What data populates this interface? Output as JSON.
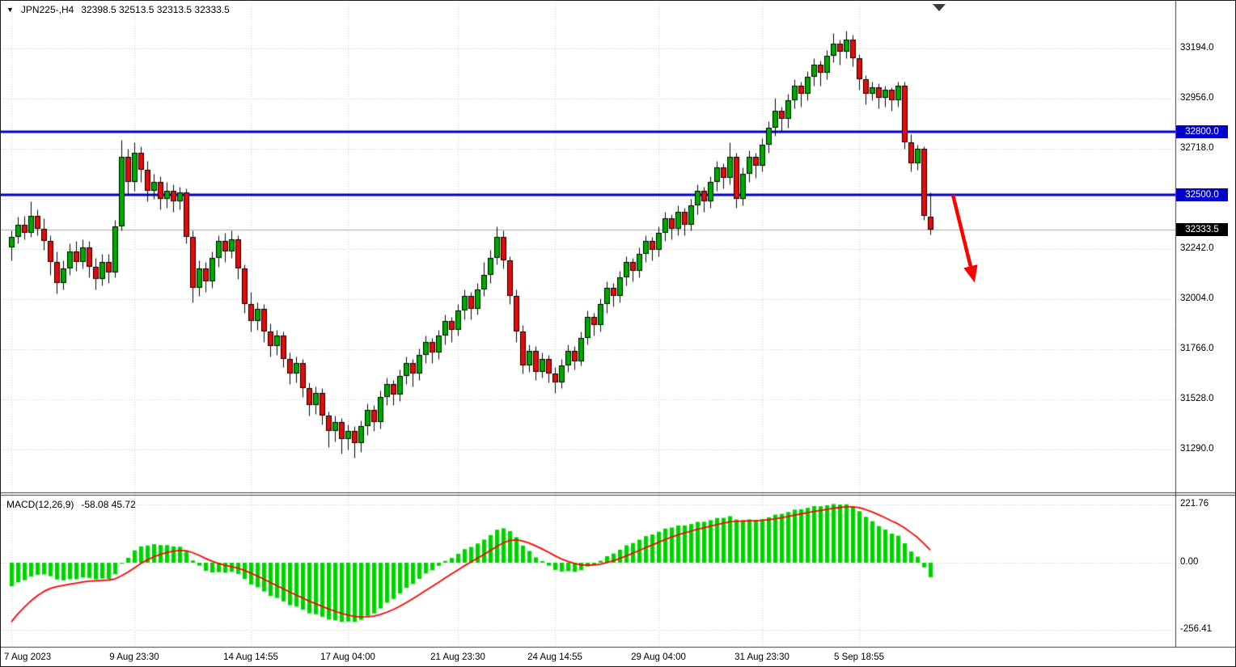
{
  "header": {
    "expand_icon": "▼",
    "symbol_period": "JPN225-,H4",
    "ohlc": "32398.5 32513.5 32313.5 32333.5"
  },
  "macd_panel_label": {
    "name": "MACD(12,26,9)",
    "values": "-58.08 45.72"
  },
  "colors": {
    "background": "#FFFFFF",
    "grid": "#C9C9C9",
    "candle_up": "#00A800",
    "candle_down": "#DE0E0E",
    "candle_border": "#000000",
    "wick": "#000000",
    "hline": "#0000C8",
    "current_price_line": "#A6A6A6",
    "tag_current_bg": "#000000",
    "macd_hist": "#00D200",
    "macd_signal": "#FF0000",
    "arrow": "#FF0000",
    "border": "#3C3C3C",
    "text": "#000000"
  },
  "chart_data": {
    "type": "candlestick",
    "title": "JPN225-,H4",
    "symbol": "JPN225-",
    "timeframe": "H4",
    "ohlc_display": {
      "open": 32398.5,
      "high": 32513.5,
      "low": 32313.5,
      "close": 32333.5
    },
    "main_axis": {
      "ylim": [
        31090,
        33365
      ],
      "grid_prices": [
        31290,
        31528,
        31766,
        32004,
        32242,
        32480,
        32718,
        32956,
        33194
      ],
      "ticks": [
        {
          "label": "33194.0",
          "price": 33194.0
        },
        {
          "label": "32956.0",
          "price": 32956.0
        },
        {
          "label": "32718.0",
          "price": 32718.0
        },
        {
          "label": "32242.0",
          "price": 32242.0
        },
        {
          "label": "32004.0",
          "price": 32004.0
        },
        {
          "label": "31766.0",
          "price": 31766.0
        },
        {
          "label": "31528.0",
          "price": 31528.0
        },
        {
          "label": "31290.0",
          "price": 31290.0
        }
      ]
    },
    "hlines": [
      {
        "type": "resistance",
        "price": 32800.0,
        "label": "32800.0"
      },
      {
        "type": "support",
        "price": 32500.0,
        "label": "32500.0"
      }
    ],
    "current_price": {
      "price": 32333.5,
      "label": "32333.5"
    },
    "x_ticks": [
      {
        "label": "7 Aug 2023",
        "bar": 0
      },
      {
        "label": "9 Aug 23:30",
        "bar": 19
      },
      {
        "label": "14 Aug 14:55",
        "bar": 37
      },
      {
        "label": "17 Aug 04:00",
        "bar": 52
      },
      {
        "label": "21 Aug 23:30",
        "bar": 69
      },
      {
        "label": "24 Aug 14:55",
        "bar": 84
      },
      {
        "label": "29 Aug 04:00",
        "bar": 100
      },
      {
        "label": "31 Aug 23:30",
        "bar": 116
      },
      {
        "label": "5 Sep 18:55",
        "bar": 131
      }
    ],
    "candles": [
      [
        32250,
        32330,
        32190,
        32300
      ],
      [
        32300,
        32395,
        32270,
        32360
      ],
      [
        32360,
        32400,
        32290,
        32320
      ],
      [
        32320,
        32470,
        32300,
        32400
      ],
      [
        32400,
        32430,
        32310,
        32340
      ],
      [
        32340,
        32390,
        32240,
        32280
      ],
      [
        32280,
        32310,
        32120,
        32180
      ],
      [
        32180,
        32230,
        32030,
        32080
      ],
      [
        32080,
        32190,
        32050,
        32150
      ],
      [
        32150,
        32270,
        32120,
        32230
      ],
      [
        32230,
        32280,
        32140,
        32180
      ],
      [
        32180,
        32290,
        32150,
        32250
      ],
      [
        32250,
        32280,
        32110,
        32160
      ],
      [
        32160,
        32200,
        32050,
        32100
      ],
      [
        32100,
        32220,
        32070,
        32180
      ],
      [
        32180,
        32220,
        32080,
        32130
      ],
      [
        32130,
        32380,
        32110,
        32350
      ],
      [
        32350,
        32760,
        32330,
        32680
      ],
      [
        32680,
        32720,
        32500,
        32560
      ],
      [
        32560,
        32750,
        32520,
        32700
      ],
      [
        32700,
        32730,
        32560,
        32620
      ],
      [
        32620,
        32660,
        32470,
        32520
      ],
      [
        32520,
        32600,
        32480,
        32560
      ],
      [
        32560,
        32590,
        32430,
        32480
      ],
      [
        32480,
        32560,
        32440,
        32520
      ],
      [
        32520,
        32550,
        32420,
        32470
      ],
      [
        32470,
        32540,
        32430,
        32510
      ],
      [
        32510,
        32530,
        32270,
        32300
      ],
      [
        32300,
        32330,
        31990,
        32060
      ],
      [
        32060,
        32190,
        32020,
        32150
      ],
      [
        32150,
        32180,
        32040,
        32090
      ],
      [
        32090,
        32230,
        32060,
        32200
      ],
      [
        32200,
        32310,
        32160,
        32280
      ],
      [
        32280,
        32320,
        32180,
        32230
      ],
      [
        32230,
        32330,
        32200,
        32290
      ],
      [
        32290,
        32310,
        32100,
        32150
      ],
      [
        32150,
        32170,
        31940,
        31980
      ],
      [
        31980,
        32040,
        31850,
        31900
      ],
      [
        31900,
        31990,
        31860,
        31960
      ],
      [
        31960,
        31980,
        31800,
        31850
      ],
      [
        31850,
        31890,
        31730,
        31780
      ],
      [
        31780,
        31860,
        31740,
        31830
      ],
      [
        31830,
        31850,
        31680,
        31720
      ],
      [
        31720,
        31750,
        31600,
        31650
      ],
      [
        31650,
        31730,
        31610,
        31700
      ],
      [
        31700,
        31720,
        31540,
        31580
      ],
      [
        31580,
        31610,
        31450,
        31500
      ],
      [
        31500,
        31590,
        31460,
        31560
      ],
      [
        31560,
        31580,
        31410,
        31450
      ],
      [
        31450,
        31470,
        31300,
        31380
      ],
      [
        31380,
        31450,
        31330,
        31420
      ],
      [
        31420,
        31440,
        31270,
        31340
      ],
      [
        31340,
        31410,
        31290,
        31380
      ],
      [
        31380,
        31400,
        31250,
        31320
      ],
      [
        31320,
        31430,
        31280,
        31400
      ],
      [
        31400,
        31510,
        31360,
        31480
      ],
      [
        31480,
        31500,
        31380,
        31420
      ],
      [
        31420,
        31570,
        31390,
        31540
      ],
      [
        31540,
        31630,
        31500,
        31600
      ],
      [
        31600,
        31620,
        31500,
        31550
      ],
      [
        31550,
        31670,
        31520,
        31640
      ],
      [
        31640,
        31730,
        31600,
        31700
      ],
      [
        31700,
        31720,
        31590,
        31650
      ],
      [
        31650,
        31770,
        31620,
        31740
      ],
      [
        31740,
        31830,
        31700,
        31800
      ],
      [
        31800,
        31820,
        31700,
        31750
      ],
      [
        31750,
        31860,
        31720,
        31830
      ],
      [
        31830,
        31930,
        31790,
        31900
      ],
      [
        31900,
        31920,
        31800,
        31860
      ],
      [
        31860,
        31980,
        31830,
        31950
      ],
      [
        31950,
        32050,
        31910,
        32020
      ],
      [
        32020,
        32040,
        31910,
        31960
      ],
      [
        31960,
        32080,
        31930,
        32050
      ],
      [
        32050,
        32180,
        32020,
        32120
      ],
      [
        32120,
        32240,
        32080,
        32200
      ],
      [
        32200,
        32350,
        32170,
        32300
      ],
      [
        32300,
        32330,
        32150,
        32190
      ],
      [
        32190,
        32210,
        31980,
        32020
      ],
      [
        32020,
        32050,
        31800,
        31850
      ],
      [
        31850,
        31880,
        31650,
        31690
      ],
      [
        31690,
        31790,
        31660,
        31760
      ],
      [
        31760,
        31780,
        31620,
        31660
      ],
      [
        31660,
        31750,
        31630,
        31720
      ],
      [
        31720,
        31740,
        31610,
        31650
      ],
      [
        31650,
        31680,
        31560,
        31610
      ],
      [
        31610,
        31720,
        31580,
        31690
      ],
      [
        31690,
        31790,
        31660,
        31760
      ],
      [
        31760,
        31780,
        31670,
        31710
      ],
      [
        31710,
        31850,
        31690,
        31820
      ],
      [
        31820,
        31950,
        31790,
        31920
      ],
      [
        31920,
        31940,
        31830,
        31880
      ],
      [
        31880,
        32010,
        31850,
        31980
      ],
      [
        31980,
        32090,
        31940,
        32060
      ],
      [
        32060,
        32080,
        31970,
        32020
      ],
      [
        32020,
        32140,
        31990,
        32110
      ],
      [
        32110,
        32210,
        32070,
        32180
      ],
      [
        32180,
        32200,
        32090,
        32140
      ],
      [
        32140,
        32250,
        32110,
        32220
      ],
      [
        32220,
        32310,
        32180,
        32280
      ],
      [
        32280,
        32300,
        32190,
        32240
      ],
      [
        32240,
        32350,
        32210,
        32320
      ],
      [
        32320,
        32420,
        32280,
        32390
      ],
      [
        32390,
        32410,
        32290,
        32340
      ],
      [
        32340,
        32450,
        32310,
        32420
      ],
      [
        32420,
        32440,
        32310,
        32360
      ],
      [
        32360,
        32480,
        32330,
        32450
      ],
      [
        32450,
        32550,
        32410,
        32520
      ],
      [
        32520,
        32540,
        32420,
        32470
      ],
      [
        32470,
        32590,
        32440,
        32560
      ],
      [
        32560,
        32660,
        32520,
        32630
      ],
      [
        32630,
        32650,
        32530,
        32580
      ],
      [
        32580,
        32750,
        32550,
        32680
      ],
      [
        32680,
        32700,
        32440,
        32480
      ],
      [
        32480,
        32630,
        32450,
        32600
      ],
      [
        32600,
        32710,
        32560,
        32680
      ],
      [
        32680,
        32700,
        32580,
        32640
      ],
      [
        32640,
        32770,
        32610,
        32740
      ],
      [
        32740,
        32850,
        32700,
        32820
      ],
      [
        32820,
        32960,
        32780,
        32900
      ],
      [
        32900,
        32920,
        32800,
        32860
      ],
      [
        32860,
        32980,
        32820,
        32950
      ],
      [
        32950,
        33050,
        32910,
        33020
      ],
      [
        33020,
        33040,
        32920,
        32980
      ],
      [
        32980,
        33090,
        32950,
        33060
      ],
      [
        33060,
        33150,
        33020,
        33120
      ],
      [
        33120,
        33140,
        33020,
        33080
      ],
      [
        33080,
        33190,
        33050,
        33160
      ],
      [
        33160,
        33270,
        33130,
        33220
      ],
      [
        33220,
        33240,
        33120,
        33180
      ],
      [
        33180,
        33280,
        33150,
        33240
      ],
      [
        33240,
        33260,
        33110,
        33150
      ],
      [
        33150,
        33170,
        33000,
        33050
      ],
      [
        33050,
        33070,
        32930,
        32980
      ],
      [
        32980,
        33040,
        32950,
        33010
      ],
      [
        33010,
        33030,
        32910,
        32960
      ],
      [
        32960,
        33020,
        32920,
        33000
      ],
      [
        33000,
        33010,
        32900,
        32950
      ],
      [
        32950,
        33040,
        32920,
        33020
      ],
      [
        33020,
        33040,
        32720,
        32750
      ],
      [
        32750,
        32790,
        32610,
        32650
      ],
      [
        32650,
        32740,
        32620,
        32720
      ],
      [
        32720,
        32730,
        32380,
        32400
      ],
      [
        32398.5,
        32513.5,
        32313.5,
        32333.5
      ]
    ],
    "macd": {
      "params": "12,26,9",
      "current_main": -58.08,
      "current_signal": 45.72,
      "ticks": [
        {
          "label": "221.76",
          "value": 221.76
        },
        {
          "label": "0.00",
          "value": 0
        },
        {
          "label": "-256.41",
          "value": -256.41
        }
      ],
      "seed": {
        "ema12_offset": -40,
        "ema26_offset": 60,
        "signal_seed": -260
      }
    },
    "annotations": [
      {
        "type": "arrow",
        "direction": "down-right",
        "color": "#FF0000"
      }
    ]
  }
}
